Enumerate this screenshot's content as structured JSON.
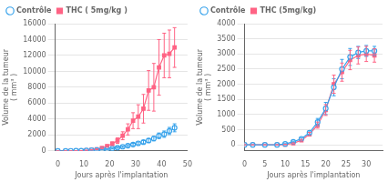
{
  "chart_data": [
    {
      "type": "line",
      "xlabel": "Jours après l'implantation",
      "ylabel": "Volume de la tumeur\n( mm³ )",
      "xlim": [
        -1,
        50
      ],
      "ylim": [
        0,
        16000
      ],
      "xticks": [
        0,
        10,
        20,
        30,
        40,
        50
      ],
      "yticks": [
        0,
        2000,
        4000,
        6000,
        8000,
        10000,
        12000,
        14000,
        16000
      ],
      "grid": "y",
      "legend": "upper left",
      "x": [
        0,
        3,
        5,
        7,
        9,
        11,
        13,
        15,
        17,
        19,
        21,
        23,
        25,
        27,
        29,
        31,
        33,
        35,
        37,
        39,
        41,
        43,
        45
      ],
      "series": [
        {
          "name": "Contrôle",
          "marker": "circle",
          "line_style": "solid",
          "values": [
            0,
            0,
            5,
            10,
            20,
            40,
            70,
            100,
            150,
            220,
            300,
            400,
            520,
            650,
            800,
            950,
            1100,
            1300,
            1550,
            1900,
            2100,
            2500,
            2900
          ],
          "errors": [
            0,
            0,
            3,
            5,
            8,
            12,
            18,
            25,
            35,
            50,
            65,
            80,
            100,
            120,
            150,
            180,
            200,
            230,
            280,
            350,
            400,
            450,
            500
          ]
        },
        {
          "name": "THC ( 5mg/kg )",
          "marker": "square",
          "line_style": "solid",
          "values": [
            0,
            0,
            5,
            15,
            30,
            70,
            130,
            200,
            350,
            600,
            900,
            1300,
            1900,
            2700,
            3800,
            4300,
            5300,
            7600,
            8000,
            10500,
            12000,
            12200,
            13000
          ],
          "errors": [
            0,
            0,
            3,
            5,
            8,
            15,
            30,
            50,
            80,
            150,
            220,
            350,
            500,
            700,
            1000,
            1500,
            1800,
            2500,
            3000,
            3500,
            2800,
            3000,
            2500
          ]
        }
      ]
    },
    {
      "type": "line",
      "xlabel": "Jours après l'implantation",
      "ylabel": "Volume de la tumeur\n( mm³ )",
      "xlim": [
        0,
        34
      ],
      "ylim": [
        -200,
        4000
      ],
      "xticks": [
        0,
        5,
        10,
        15,
        20,
        25,
        30
      ],
      "yticks": [
        0,
        500,
        1000,
        1500,
        2000,
        2500,
        3000,
        3500,
        4000
      ],
      "grid": "y",
      "legend": "upper left",
      "x": [
        0,
        2,
        5,
        8,
        10,
        12,
        14,
        16,
        18,
        20,
        22,
        24,
        26,
        28,
        30,
        32
      ],
      "series": [
        {
          "name": "Contrôle",
          "marker": "circle",
          "line_style": "solid",
          "values": [
            0,
            0,
            0,
            0,
            30,
            100,
            200,
            400,
            750,
            1200,
            1900,
            2500,
            2900,
            3050,
            3100,
            3100
          ],
          "errors": [
            0,
            0,
            0,
            0,
            10,
            20,
            40,
            70,
            120,
            200,
            280,
            320,
            280,
            200,
            180,
            150
          ]
        },
        {
          "name": "THC (5mg/kg)",
          "marker": "square",
          "line_style": "solid",
          "values": [
            0,
            0,
            0,
            0,
            10,
            50,
            150,
            350,
            650,
            1150,
            2000,
            2400,
            2800,
            2950,
            3000,
            2950
          ],
          "errors": [
            0,
            0,
            0,
            0,
            5,
            15,
            30,
            60,
            100,
            180,
            300,
            300,
            320,
            280,
            250,
            220
          ]
        }
      ]
    }
  ]
}
